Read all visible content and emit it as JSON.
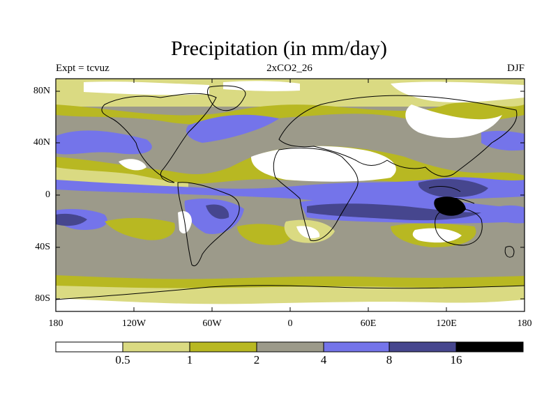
{
  "title": "Precipitation (in mm/day)",
  "subtitle_left": "Expt = tcvuz",
  "subtitle_center": "2xCO2_26",
  "subtitle_right": "DJF",
  "map": {
    "lon_range": [
      -180,
      180
    ],
    "lat_range": [
      -90,
      90
    ],
    "y_ticks": [
      "80N",
      "40N",
      "0",
      "40S",
      "80S"
    ],
    "x_ticks": [
      "180",
      "120W",
      "60W",
      "0",
      "60E",
      "120E",
      "180"
    ]
  },
  "colorbar": {
    "levels": [
      "0.5",
      "1",
      "2",
      "4",
      "8",
      "16"
    ],
    "colors": [
      "#ffffff",
      "#dada82",
      "#b8b822",
      "#9c9a8a",
      "#7474ea",
      "#46468e",
      "#000000"
    ]
  }
}
